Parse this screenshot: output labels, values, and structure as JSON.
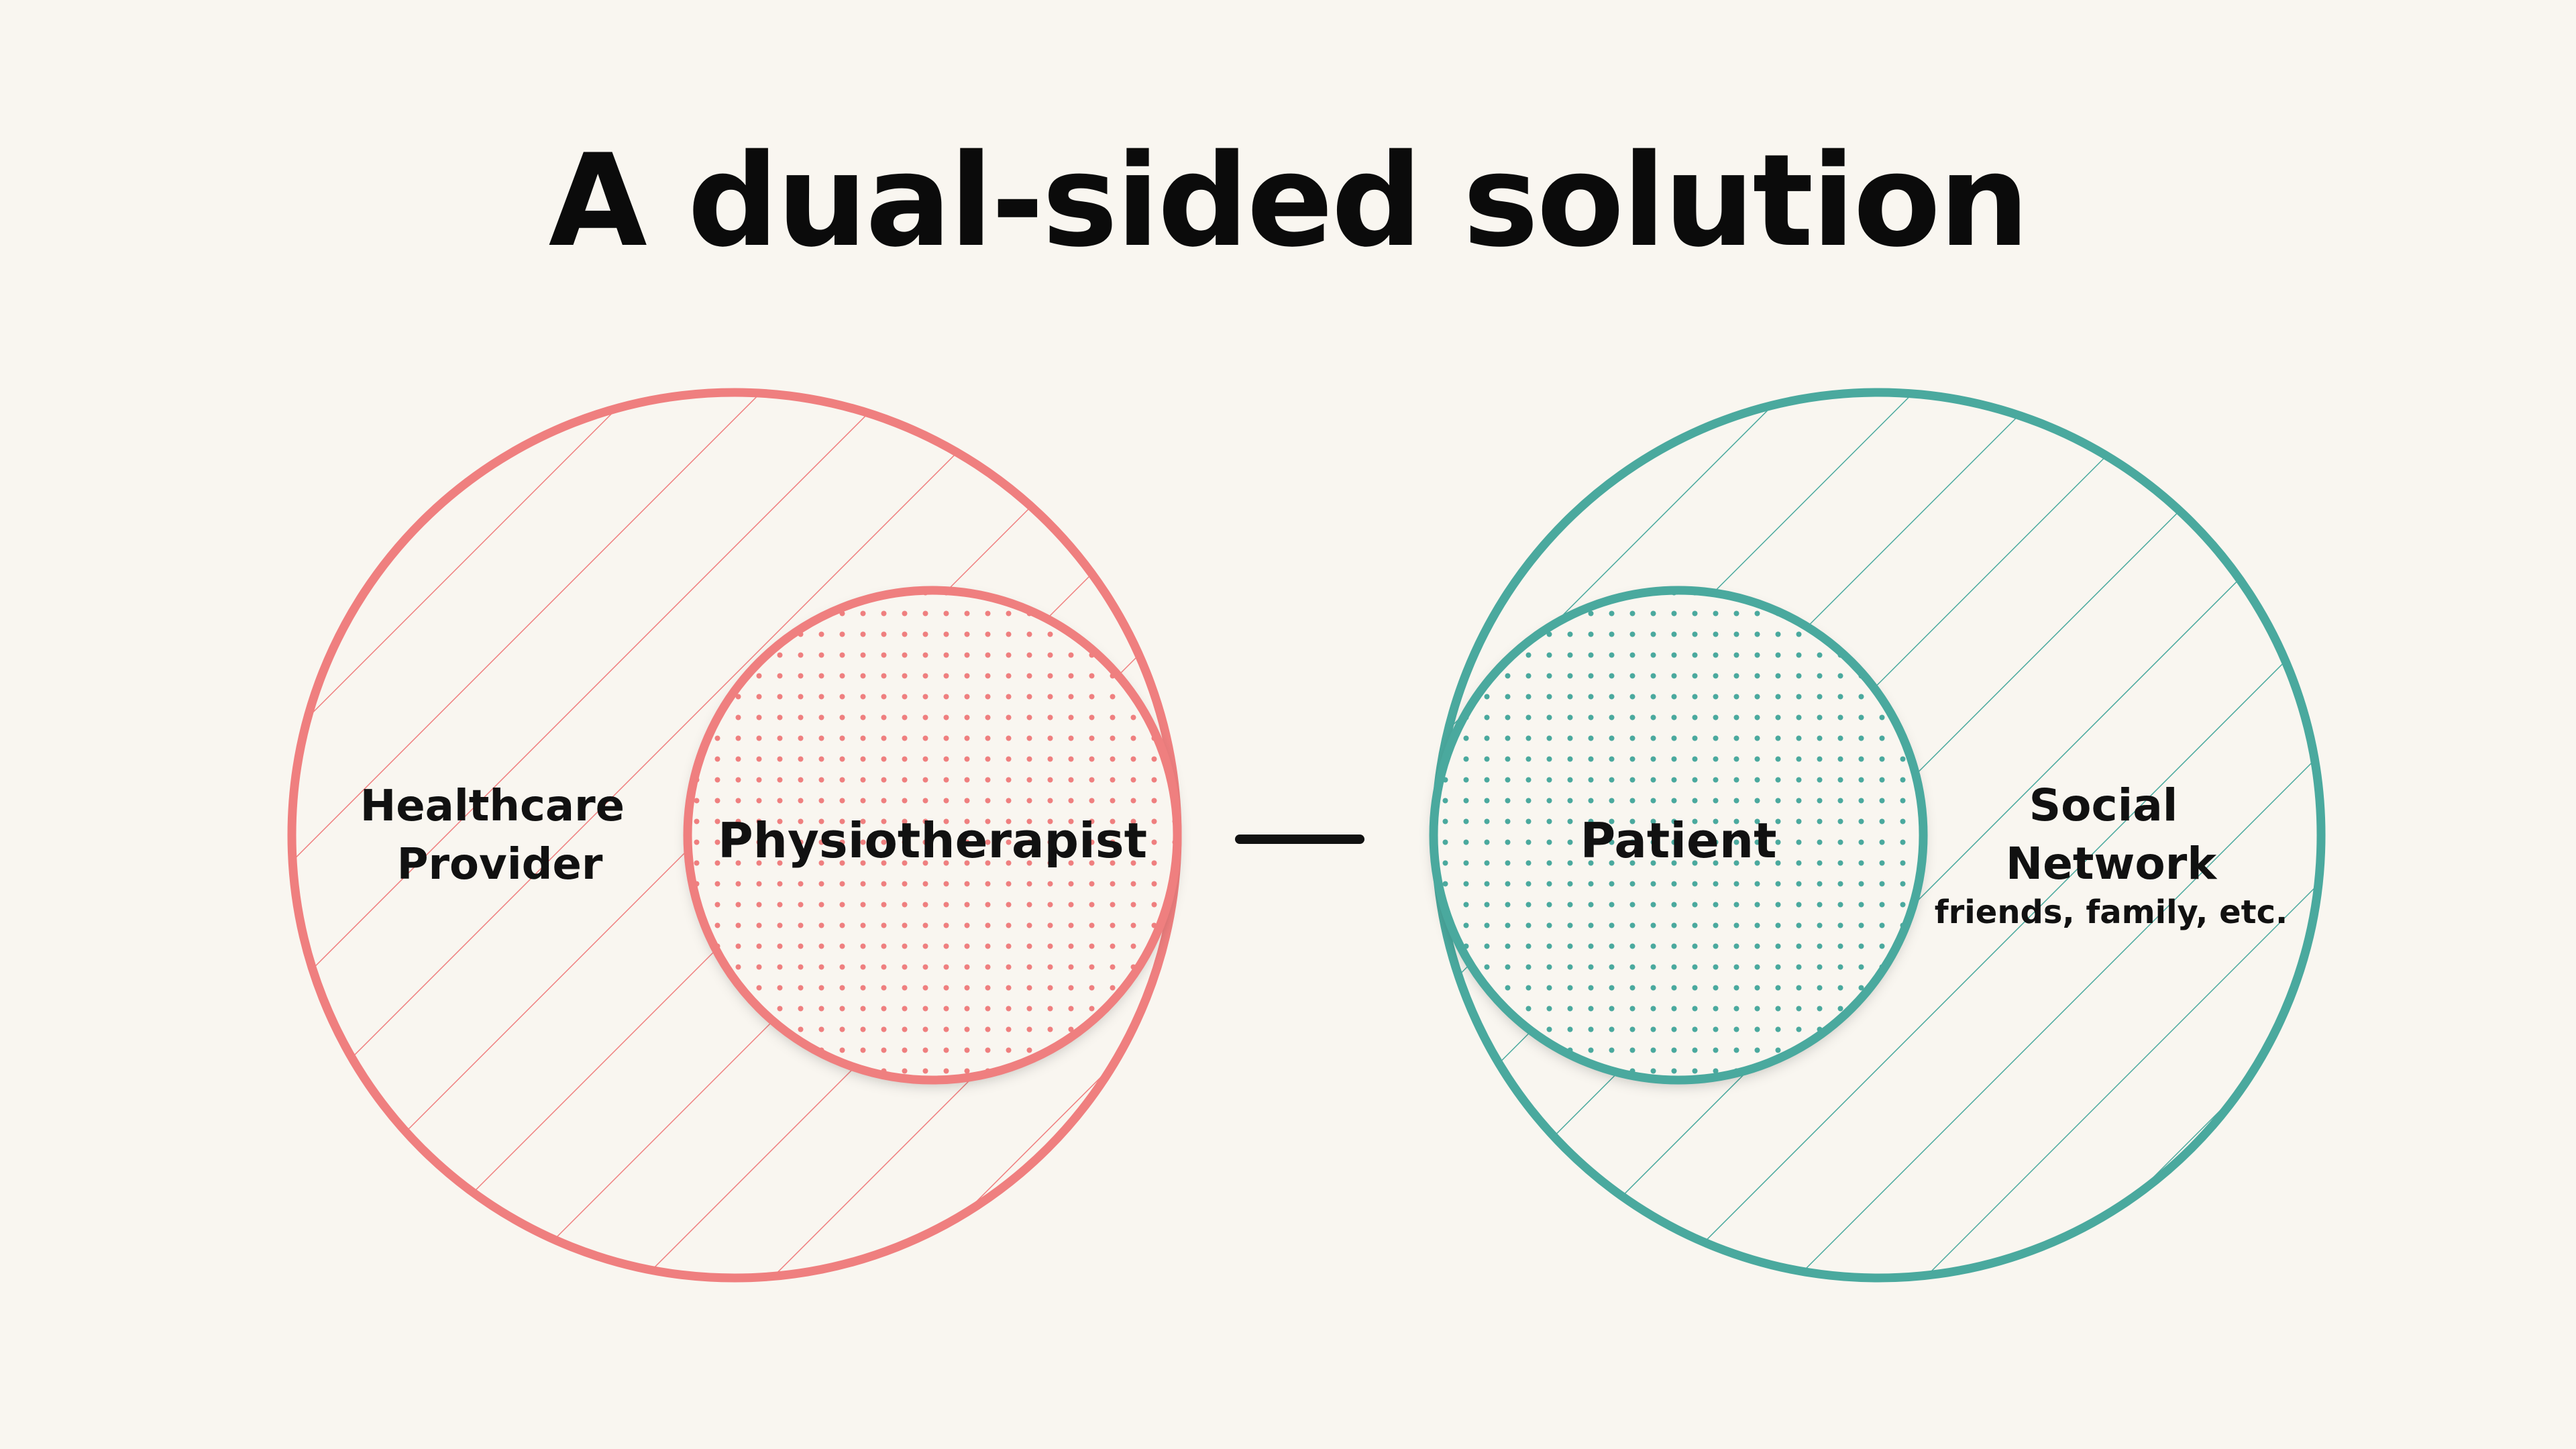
{
  "title": "A dual-sided solution",
  "colors": {
    "background": "#f9f6f0",
    "provider_side": "#ef7f7f",
    "patient_side": "#4aa99e",
    "text": "#111111"
  },
  "left_group": {
    "outer_label_line1": "Healthcare",
    "outer_label_line2": "Provider",
    "inner_label": "Physiotherapist"
  },
  "right_group": {
    "inner_label": "Patient",
    "outer_label_line1": "Social",
    "outer_label_line2": "Network",
    "outer_sublabel": "friends, family, etc."
  },
  "connector": "dash-connector"
}
